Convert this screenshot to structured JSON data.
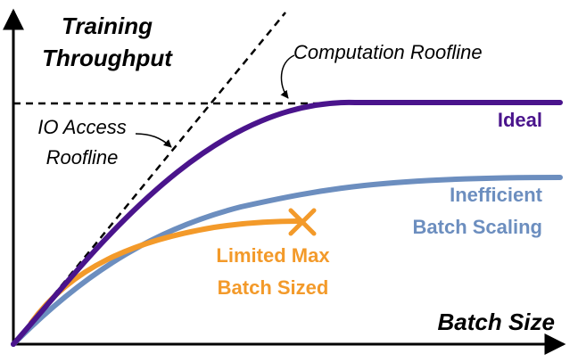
{
  "axes": {
    "y_label_line1": "Training",
    "y_label_line2": "Throughput",
    "x_label": "Batch Size"
  },
  "annotations": {
    "computation_roofline": "Computation Roofline",
    "io_access_line1": "IO Access",
    "io_access_line2": "Roofline"
  },
  "curves": {
    "ideal": {
      "label": "Ideal",
      "color": "#4a148c"
    },
    "inefficient": {
      "label_line1": "Inefficient",
      "label_line2": "Batch Scaling",
      "color": "#6c8ebf"
    },
    "limited": {
      "label_line1": "Limited Max",
      "label_line2": "Batch Sized",
      "color": "#f39a2a",
      "end_marker": "x-mark-icon"
    }
  }
}
